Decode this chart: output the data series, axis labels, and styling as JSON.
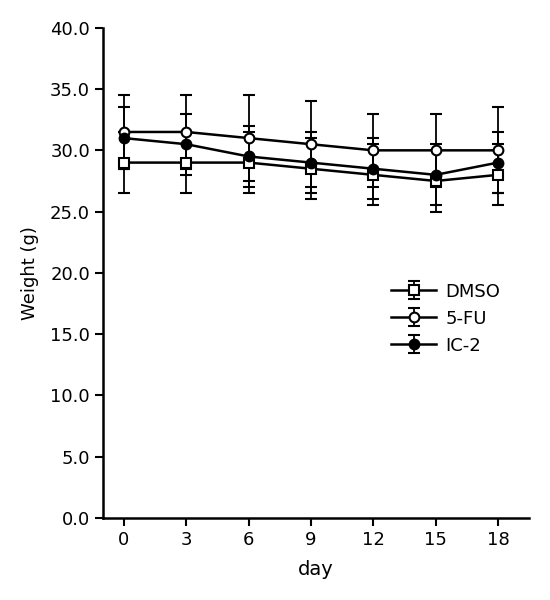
{
  "days": [
    0,
    3,
    6,
    9,
    12,
    15,
    18
  ],
  "DMSO": {
    "values": [
      29.0,
      29.0,
      29.0,
      28.5,
      28.0,
      27.5,
      28.0
    ],
    "errors": [
      2.5,
      2.5,
      2.5,
      2.5,
      2.5,
      2.5,
      2.5
    ],
    "marker": "s",
    "marker_fill": "white",
    "label": "DMSO"
  },
  "5-FU": {
    "values": [
      31.5,
      31.5,
      31.0,
      30.5,
      30.0,
      30.0,
      30.0
    ],
    "errors": [
      3.0,
      3.0,
      3.5,
      3.5,
      3.0,
      3.0,
      3.5
    ],
    "marker": "o",
    "marker_fill": "white",
    "label": "5-FU"
  },
  "IC2": {
    "values": [
      31.0,
      30.5,
      29.5,
      29.0,
      28.5,
      28.0,
      29.0
    ],
    "errors": [
      2.5,
      2.5,
      2.5,
      2.5,
      2.5,
      2.5,
      2.5
    ],
    "marker": "o",
    "marker_fill": "black",
    "label": "IC-2"
  },
  "xlabel": "day",
  "ylabel": "Weight (g)",
  "ylim": [
    0.0,
    40.0
  ],
  "yticks": [
    0.0,
    5.0,
    10.0,
    15.0,
    20.0,
    25.0,
    30.0,
    35.0,
    40.0
  ],
  "xticks": [
    0,
    3,
    6,
    9,
    12,
    15,
    18
  ],
  "line_color": "black",
  "line_width": 1.8,
  "marker_size": 7,
  "capsize": 4,
  "error_linewidth": 1.3,
  "background_color": "#ffffff"
}
